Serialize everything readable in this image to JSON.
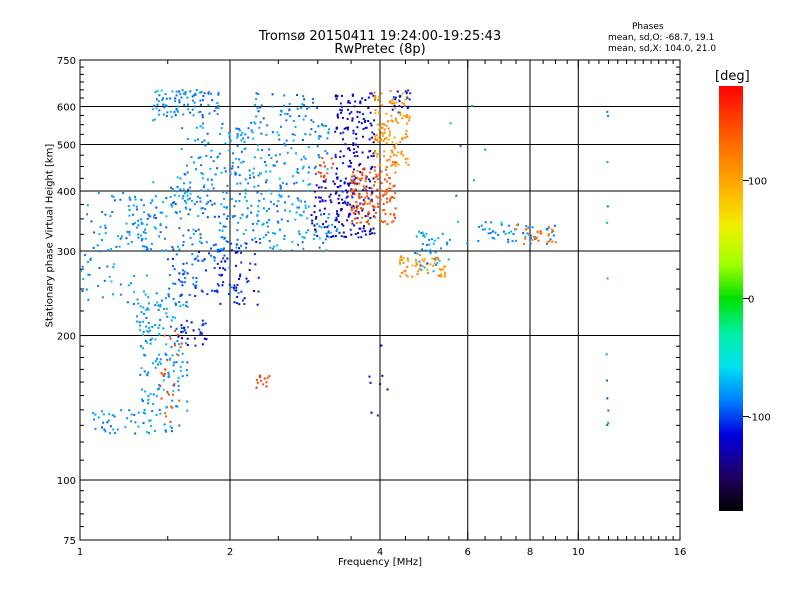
{
  "title": {
    "line1": "Tromsø 20150411 19:24:00-19:25:43",
    "line2": "RwPretec (8p)"
  },
  "phases": {
    "heading": "Phases",
    "o_stats": "mean, sd,O: -68.7, 19.1",
    "x_stats": "mean, sd,X: 104.0, 21.0"
  },
  "colorbar": {
    "label": "[deg]",
    "ticks": [
      {
        "value": 100,
        "label": "100"
      },
      {
        "value": 0,
        "label": "0"
      },
      {
        "value": -100,
        "label": "-100"
      }
    ],
    "range": [
      -180,
      180
    ]
  },
  "chart_data": {
    "type": "scatter",
    "xlabel": "Frequency [MHz]",
    "ylabel": "Stationary phase Virtual Height [km]",
    "xscale": "log",
    "yscale": "log",
    "xlim": [
      1,
      16
    ],
    "ylim": [
      75,
      750
    ],
    "xticks": [
      {
        "value": 1,
        "label": "1"
      },
      {
        "value": 2,
        "label": "2"
      },
      {
        "value": 4,
        "label": "4"
      },
      {
        "value": 6,
        "label": "6"
      },
      {
        "value": 8,
        "label": "8"
      },
      {
        "value": 10,
        "label": "10"
      },
      {
        "value": 16,
        "label": "16"
      }
    ],
    "xgrid": [
      2,
      4,
      6,
      8,
      10
    ],
    "yticks": [
      {
        "value": 75,
        "label": "75"
      },
      {
        "value": 100,
        "label": "100"
      },
      {
        "value": 200,
        "label": "200"
      },
      {
        "value": 300,
        "label": "300"
      },
      {
        "value": 400,
        "label": "400"
      },
      {
        "value": 500,
        "label": "500"
      },
      {
        "value": 600,
        "label": "600"
      },
      {
        "value": 750,
        "label": "750"
      }
    ],
    "ygrid": [
      100,
      200,
      300,
      400,
      500,
      600
    ],
    "grid": true,
    "color_encoding": "phase [deg]",
    "clusters": [
      {
        "f": [
          1.55,
          1.9
        ],
        "h": [
          570,
          650
        ],
        "phase": -85,
        "n": 60
      },
      {
        "f": [
          1.4,
          1.62
        ],
        "h": [
          560,
          650
        ],
        "phase": -80,
        "n": 35
      },
      {
        "f": [
          1.6,
          3.2
        ],
        "h": [
          430,
          560
        ],
        "phase": -80,
        "n": 160
      },
      {
        "f": [
          1.5,
          2.9
        ],
        "h": [
          360,
          440
        ],
        "phase": -80,
        "n": 140
      },
      {
        "f": [
          2.2,
          3.0
        ],
        "h": [
          560,
          640
        ],
        "phase": -85,
        "n": 40
      },
      {
        "f": [
          1.2,
          2.0
        ],
        "h": [
          300,
          390
        ],
        "phase": -85,
        "n": 120
      },
      {
        "f": [
          2.0,
          3.3
        ],
        "h": [
          300,
          360
        ],
        "phase": -80,
        "n": 90
      },
      {
        "f": [
          1.0,
          1.5
        ],
        "h": [
          230,
          420
        ],
        "phase": -80,
        "n": 90
      },
      {
        "f": [
          1.5,
          2.1
        ],
        "h": [
          240,
          300
        ],
        "phase": -95,
        "n": 80
      },
      {
        "f": [
          1.9,
          2.3
        ],
        "h": [
          230,
          320
        ],
        "phase": -115,
        "n": 50
      },
      {
        "f": [
          1.3,
          1.65
        ],
        "h": [
          125,
          240
        ],
        "phase": -80,
        "n": 170
      },
      {
        "f": [
          1.05,
          1.3
        ],
        "h": [
          125,
          140
        ],
        "phase": -85,
        "n": 30
      },
      {
        "f": [
          1.55,
          1.8
        ],
        "h": [
          190,
          215
        ],
        "phase": -110,
        "n": 30
      },
      {
        "f": [
          1.45,
          1.6
        ],
        "h": [
          130,
          210
        ],
        "phase": 150,
        "n": 25
      },
      {
        "f": [
          3.25,
          3.9
        ],
        "h": [
          320,
          640
        ],
        "phase": -120,
        "n": 230
      },
      {
        "f": [
          2.9,
          3.45
        ],
        "h": [
          320,
          420
        ],
        "phase": -125,
        "n": 60
      },
      {
        "f": [
          3.5,
          4.3
        ],
        "h": [
          340,
          450
        ],
        "phase": 140,
        "n": 140
      },
      {
        "f": [
          3.9,
          4.6
        ],
        "h": [
          450,
          650
        ],
        "phase": 110,
        "n": 130
      },
      {
        "f": [
          4.2,
          4.6
        ],
        "h": [
          580,
          650
        ],
        "phase": -110,
        "n": 20
      },
      {
        "f": [
          4.3,
          5.5
        ],
        "h": [
          265,
          295
        ],
        "phase": 112,
        "n": 60
      },
      {
        "f": [
          4.7,
          5.5
        ],
        "h": [
          270,
          330
        ],
        "phase": -80,
        "n": 40
      },
      {
        "f": [
          6.3,
          9.0
        ],
        "h": [
          310,
          345
        ],
        "phase": -80,
        "n": 50
      },
      {
        "f": [
          7.5,
          9.2
        ],
        "h": [
          310,
          345
        ],
        "phase": 130,
        "n": 25
      },
      {
        "f": [
          3.0,
          3.3
        ],
        "h": [
          420,
          470
        ],
        "phase": 150,
        "n": 15
      },
      {
        "f": [
          2.25,
          2.45
        ],
        "h": [
          155,
          165
        ],
        "phase": 150,
        "n": 12
      },
      {
        "f": [
          11.4,
          11.5
        ],
        "h": [
          130,
          620
        ],
        "phase": -85,
        "n": 12
      },
      {
        "f": [
          5.5,
          6.6
        ],
        "h": [
          300,
          650
        ],
        "phase": -80,
        "n": 10
      },
      {
        "f": [
          3.8,
          4.2
        ],
        "h": [
          130,
          200
        ],
        "phase": -120,
        "n": 8
      }
    ]
  }
}
